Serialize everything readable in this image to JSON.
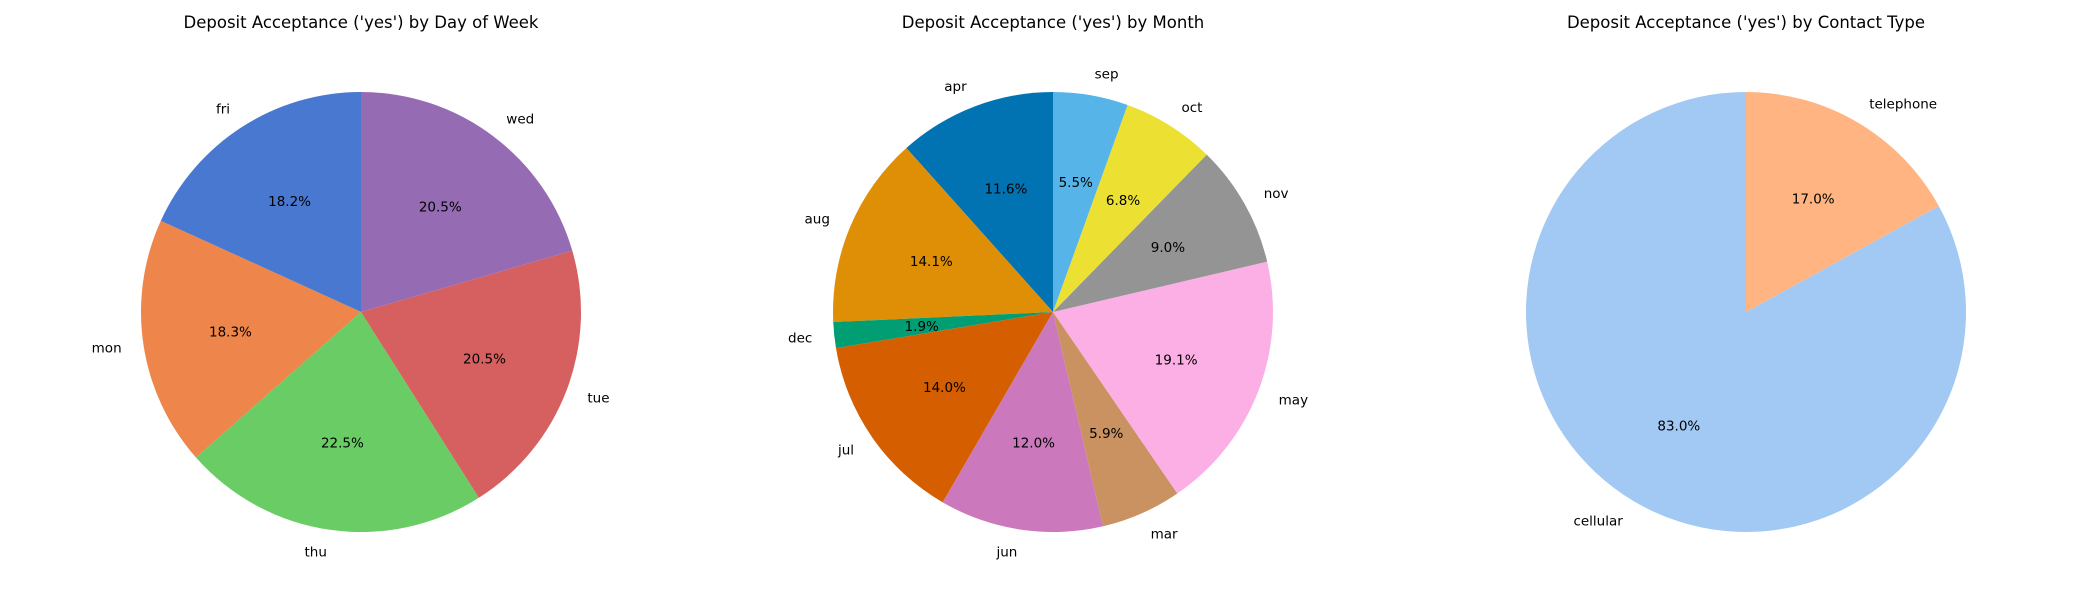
{
  "chart_data": [
    {
      "type": "pie",
      "title": "Deposit Acceptance ('yes') by Day of Week",
      "categories": [
        "fri",
        "mon",
        "thu",
        "tue",
        "wed"
      ],
      "values": [
        18.2,
        18.3,
        22.5,
        20.5,
        20.5
      ],
      "value_labels": [
        "18.2%",
        "18.3%",
        "22.5%",
        "20.5%",
        "20.5%"
      ],
      "colors": [
        "#4878d0",
        "#ee854a",
        "#6acc64",
        "#d65f5f",
        "#956cb4"
      ],
      "start_angle": 90,
      "direction": "counterclockwise"
    },
    {
      "type": "pie",
      "title": "Deposit Acceptance ('yes') by Month",
      "categories": [
        "apr",
        "aug",
        "dec",
        "jul",
        "jun",
        "mar",
        "may",
        "nov",
        "oct",
        "sep"
      ],
      "values": [
        11.6,
        14.1,
        1.9,
        14.0,
        12.0,
        5.9,
        19.1,
        9.0,
        6.8,
        5.5
      ],
      "value_labels": [
        "11.6%",
        "14.1%",
        "1.9%",
        "14.0%",
        "12.0%",
        "5.9%",
        "19.1%",
        "9.0%",
        "6.8%",
        "5.5%"
      ],
      "colors": [
        "#0173b2",
        "#de8f05",
        "#029e73",
        "#d55e00",
        "#cc78bc",
        "#ca9161",
        "#fbafe4",
        "#949494",
        "#ece133",
        "#56b4e9"
      ],
      "start_angle": 90,
      "direction": "counterclockwise"
    },
    {
      "type": "pie",
      "title": "Deposit Acceptance ('yes') by Contact Type",
      "categories": [
        "cellular",
        "telephone"
      ],
      "values": [
        83.0,
        17.0
      ],
      "value_labels": [
        "83.0%",
        "17.0%"
      ],
      "colors": [
        "#a1c9f4",
        "#ffb482"
      ],
      "start_angle": 90,
      "direction": "counterclockwise"
    }
  ]
}
